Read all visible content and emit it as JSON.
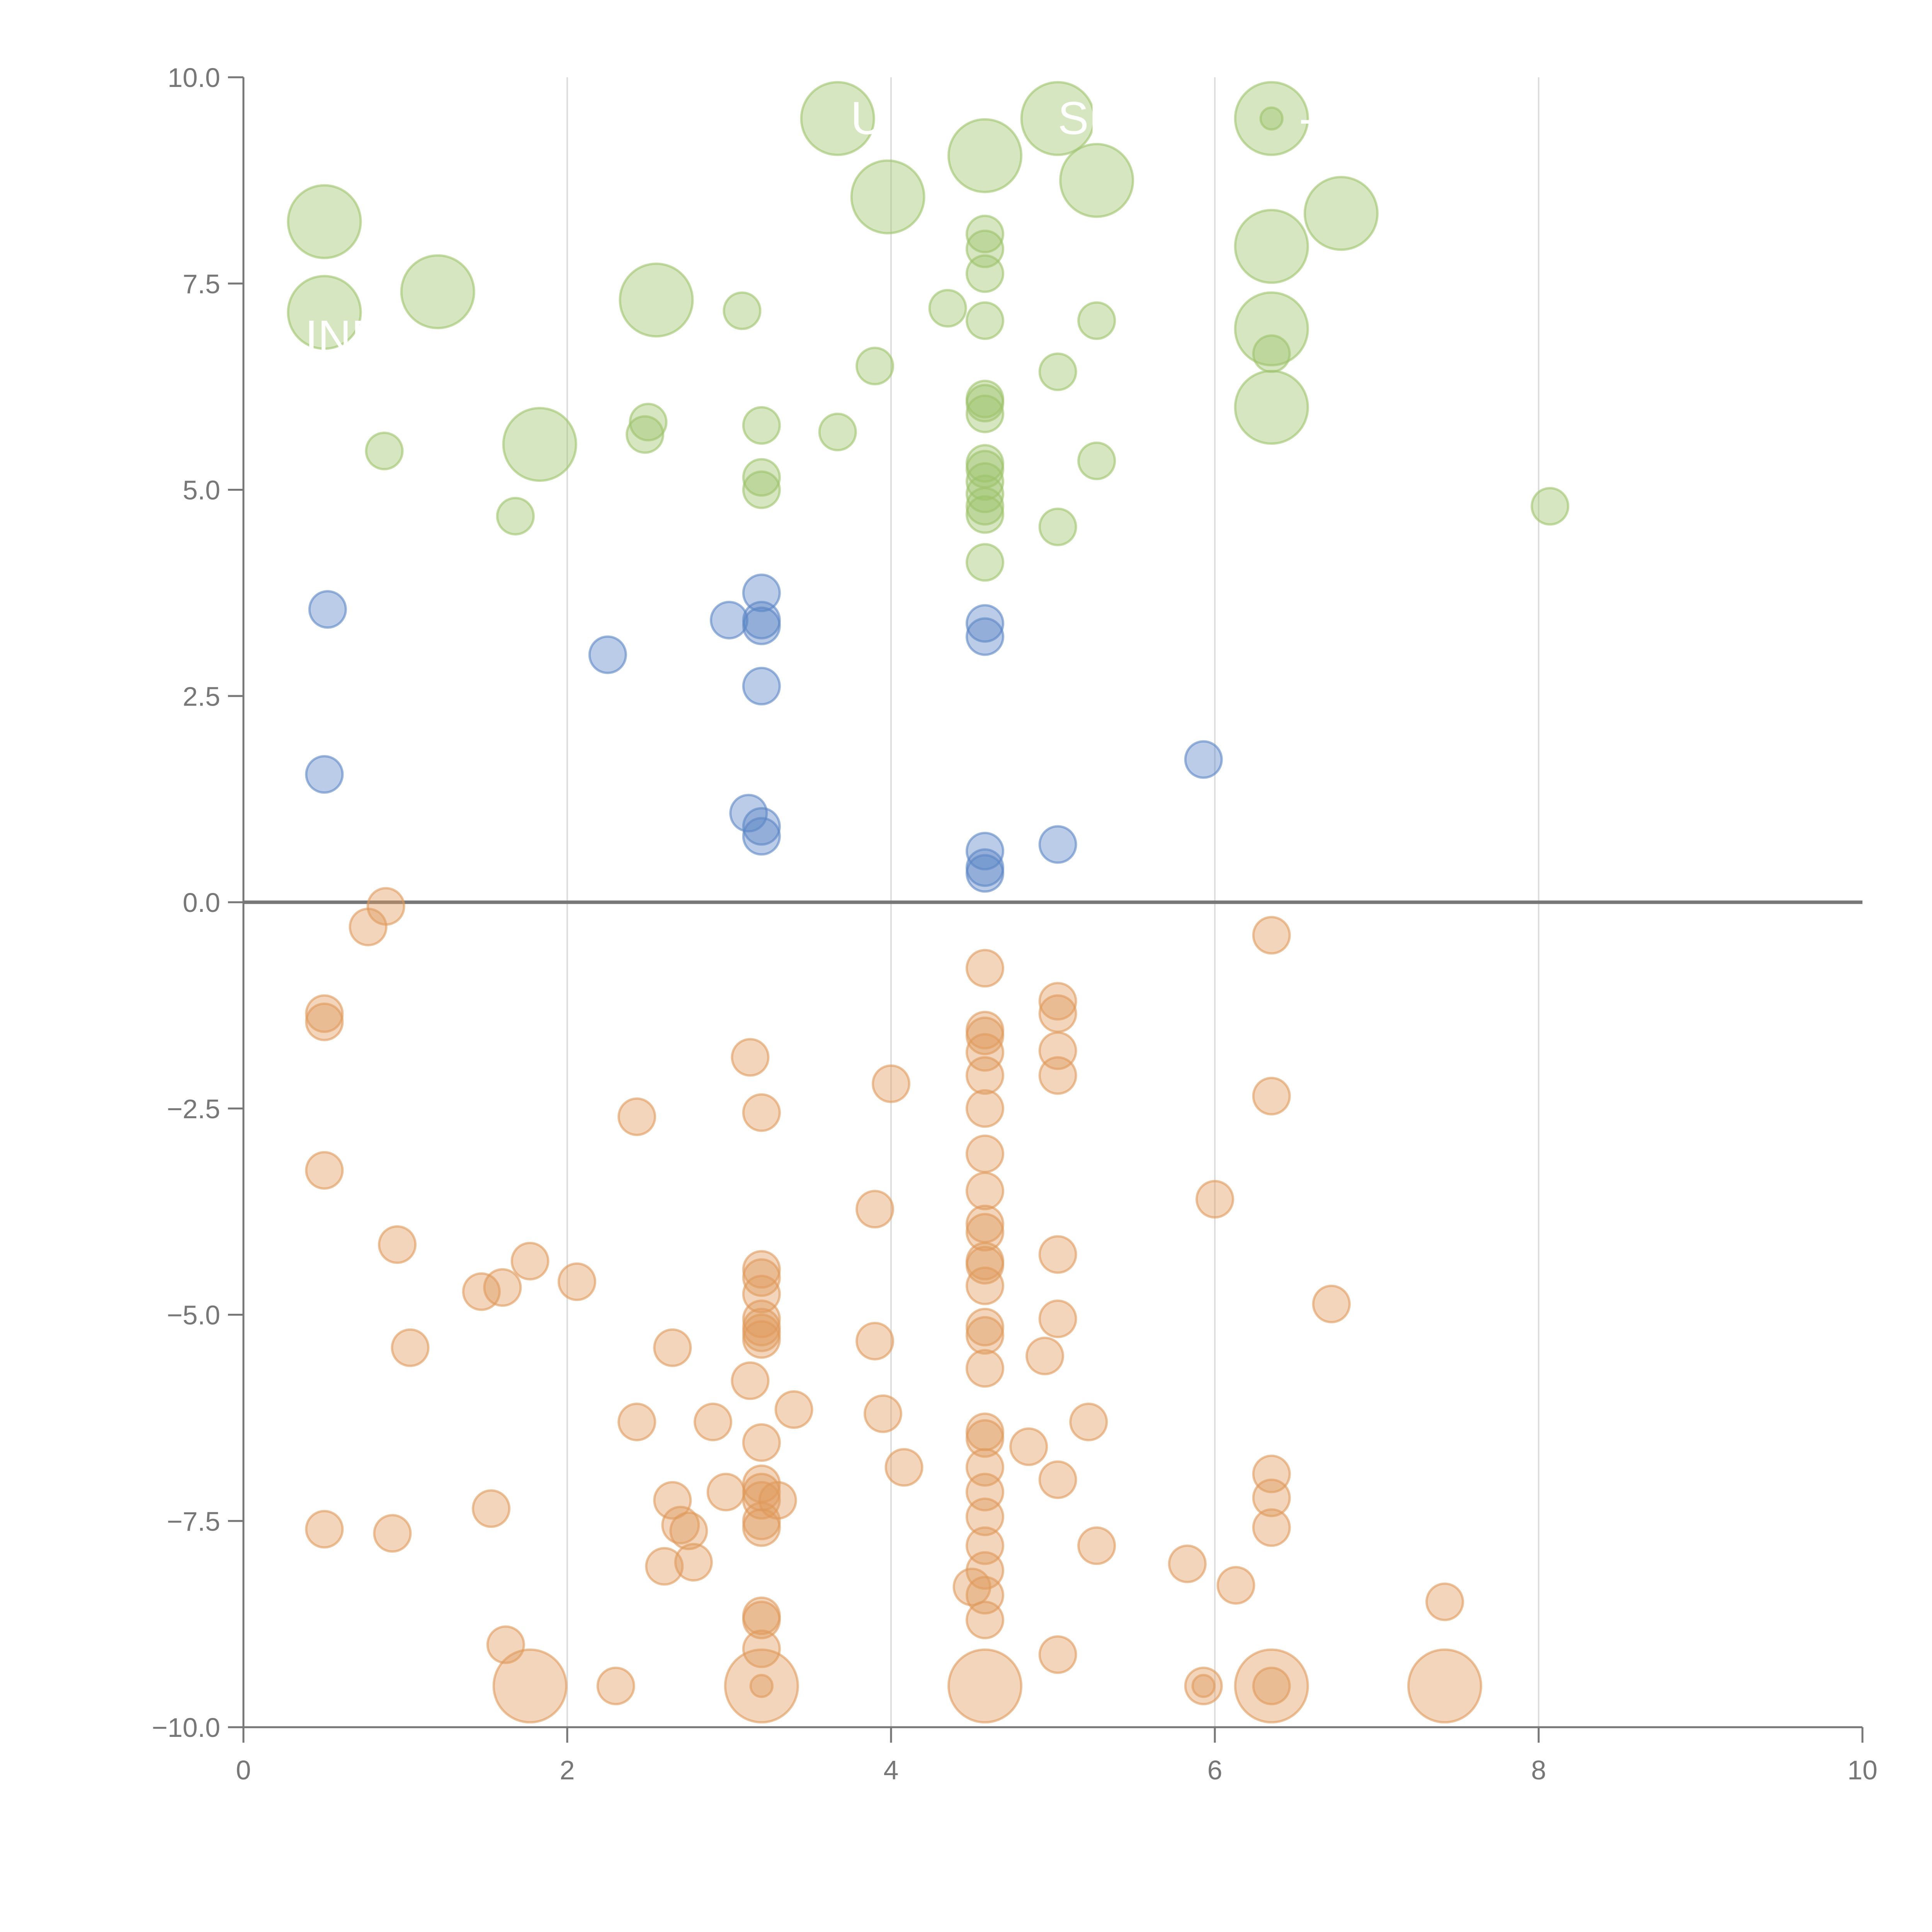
{
  "chart_data": {
    "type": "scatter",
    "title": "",
    "xlabel": "",
    "ylabel": "",
    "xlim": [
      0,
      10
    ],
    "ylim": [
      -10,
      10
    ],
    "x_ticks": [
      "0",
      "2",
      "4",
      "6",
      "8",
      "10"
    ],
    "y_ticks": [
      "10.0",
      "7.5",
      "5.0",
      "2.5",
      "0.0",
      "−2.5",
      "−5.0",
      "−7.5",
      "−10.0"
    ],
    "x_tick_values": [
      0,
      2,
      4,
      6,
      8,
      10
    ],
    "y_tick_values": [
      10,
      7.5,
      5,
      2.5,
      0,
      -2.5,
      -5,
      -7.5,
      -10
    ],
    "vertical_grid_at": [
      2,
      4,
      6,
      8
    ],
    "zero_line": 0,
    "size_note_small_r": 1,
    "colors": {
      "high": "#9dc36b",
      "mid": "#5b86c5",
      "low": "#e09a5c",
      "axis": "#777777",
      "grid": "#dddddd",
      "zero_line": "#777777"
    },
    "series": [
      {
        "color_key": "high",
        "points": [
          {
            "x": 0.5,
            "y": 8.25,
            "s": 2
          },
          {
            "x": 0.5,
            "y": 7.15,
            "s": 2
          },
          {
            "x": 1.2,
            "y": 7.4,
            "s": 2
          },
          {
            "x": 2.55,
            "y": 7.3,
            "s": 2
          },
          {
            "x": 1.83,
            "y": 5.55,
            "s": 2
          },
          {
            "x": 3.67,
            "y": 9.5,
            "s": 2
          },
          {
            "x": 3.98,
            "y": 8.55,
            "s": 2
          },
          {
            "x": 4.58,
            "y": 9.05,
            "s": 2
          },
          {
            "x": 5.03,
            "y": 9.5,
            "s": 2
          },
          {
            "x": 5.27,
            "y": 8.75,
            "s": 2
          },
          {
            "x": 6.35,
            "y": 9.5,
            "s": 2
          },
          {
            "x": 6.35,
            "y": 7.95,
            "s": 2
          },
          {
            "x": 6.35,
            "y": 6.95,
            "s": 2
          },
          {
            "x": 6.35,
            "y": 6.0,
            "s": 2
          },
          {
            "x": 6.78,
            "y": 8.35,
            "s": 2
          },
          {
            "x": 0.87,
            "y": 5.47,
            "s": 1
          },
          {
            "x": 1.68,
            "y": 4.68,
            "s": 1
          },
          {
            "x": 2.48,
            "y": 5.67,
            "s": 1
          },
          {
            "x": 2.5,
            "y": 5.82,
            "s": 1
          },
          {
            "x": 3.08,
            "y": 7.17,
            "s": 1
          },
          {
            "x": 3.2,
            "y": 5.78,
            "s": 1
          },
          {
            "x": 3.2,
            "y": 5.15,
            "s": 1
          },
          {
            "x": 3.2,
            "y": 5.0,
            "s": 1
          },
          {
            "x": 3.67,
            "y": 5.7,
            "s": 1
          },
          {
            "x": 3.9,
            "y": 6.5,
            "s": 1
          },
          {
            "x": 4.35,
            "y": 7.2,
            "s": 1
          },
          {
            "x": 4.58,
            "y": 8.1,
            "s": 1
          },
          {
            "x": 4.58,
            "y": 7.92,
            "s": 1
          },
          {
            "x": 4.58,
            "y": 7.62,
            "s": 1
          },
          {
            "x": 4.58,
            "y": 7.05,
            "s": 1
          },
          {
            "x": 4.58,
            "y": 6.1,
            "s": 1
          },
          {
            "x": 4.58,
            "y": 6.05,
            "s": 1
          },
          {
            "x": 4.58,
            "y": 5.92,
            "s": 1
          },
          {
            "x": 4.58,
            "y": 5.32,
            "s": 1
          },
          {
            "x": 4.58,
            "y": 5.25,
            "s": 1
          },
          {
            "x": 4.58,
            "y": 5.1,
            "s": 1
          },
          {
            "x": 4.58,
            "y": 4.95,
            "s": 1
          },
          {
            "x": 4.58,
            "y": 4.8,
            "s": 1
          },
          {
            "x": 4.58,
            "y": 4.7,
            "s": 1
          },
          {
            "x": 4.58,
            "y": 4.12,
            "s": 1
          },
          {
            "x": 5.03,
            "y": 6.43,
            "s": 1
          },
          {
            "x": 5.03,
            "y": 4.55,
            "s": 1
          },
          {
            "x": 5.27,
            "y": 7.05,
            "s": 1
          },
          {
            "x": 5.27,
            "y": 5.35,
            "s": 1
          },
          {
            "x": 6.35,
            "y": 9.5,
            "s": 0.6
          },
          {
            "x": 6.35,
            "y": 6.65,
            "s": 1
          },
          {
            "x": 8.07,
            "y": 4.8,
            "s": 1
          }
        ]
      },
      {
        "color_key": "mid",
        "points": [
          {
            "x": 0.52,
            "y": 3.55,
            "s": 1
          },
          {
            "x": 0.5,
            "y": 1.55,
            "s": 1
          },
          {
            "x": 2.25,
            "y": 3.0,
            "s": 1
          },
          {
            "x": 3.0,
            "y": 3.42,
            "s": 1
          },
          {
            "x": 3.2,
            "y": 3.75,
            "s": 1
          },
          {
            "x": 3.2,
            "y": 3.42,
            "s": 1
          },
          {
            "x": 3.2,
            "y": 3.35,
            "s": 1
          },
          {
            "x": 3.2,
            "y": 2.62,
            "s": 1
          },
          {
            "x": 3.12,
            "y": 1.08,
            "s": 1
          },
          {
            "x": 3.2,
            "y": 0.92,
            "s": 1
          },
          {
            "x": 3.2,
            "y": 0.8,
            "s": 1
          },
          {
            "x": 4.58,
            "y": 3.38,
            "s": 1
          },
          {
            "x": 4.58,
            "y": 3.22,
            "s": 1
          },
          {
            "x": 4.58,
            "y": 0.62,
            "s": 1
          },
          {
            "x": 4.58,
            "y": 0.42,
            "s": 1
          },
          {
            "x": 4.58,
            "y": 0.35,
            "s": 1
          },
          {
            "x": 5.03,
            "y": 0.7,
            "s": 1
          },
          {
            "x": 5.93,
            "y": 1.73,
            "s": 1
          }
        ]
      },
      {
        "color_key": "low",
        "points": [
          {
            "x": 0.88,
            "y": -0.05,
            "s": 1
          },
          {
            "x": 0.77,
            "y": -0.3,
            "s": 1
          },
          {
            "x": 0.5,
            "y": -1.35,
            "s": 1
          },
          {
            "x": 0.5,
            "y": -1.45,
            "s": 1
          },
          {
            "x": 0.5,
            "y": -3.25,
            "s": 1
          },
          {
            "x": 0.95,
            "y": -4.15,
            "s": 1
          },
          {
            "x": 1.47,
            "y": -4.72,
            "s": 1
          },
          {
            "x": 1.6,
            "y": -4.67,
            "s": 1
          },
          {
            "x": 1.77,
            "y": -4.35,
            "s": 1
          },
          {
            "x": 2.06,
            "y": -4.6,
            "s": 1
          },
          {
            "x": 1.03,
            "y": -5.4,
            "s": 1
          },
          {
            "x": 0.5,
            "y": -7.6,
            "s": 1
          },
          {
            "x": 0.92,
            "y": -7.65,
            "s": 1
          },
          {
            "x": 1.53,
            "y": -7.35,
            "s": 1
          },
          {
            "x": 1.62,
            "y": -9.0,
            "s": 1
          },
          {
            "x": 1.77,
            "y": -9.5,
            "s": 2
          },
          {
            "x": 2.3,
            "y": -9.5,
            "s": 1
          },
          {
            "x": 2.43,
            "y": -2.6,
            "s": 1
          },
          {
            "x": 2.43,
            "y": -6.3,
            "s": 1
          },
          {
            "x": 2.65,
            "y": -5.4,
            "s": 1
          },
          {
            "x": 2.65,
            "y": -7.25,
            "s": 1
          },
          {
            "x": 2.7,
            "y": -7.55,
            "s": 1
          },
          {
            "x": 2.75,
            "y": -7.62,
            "s": 1
          },
          {
            "x": 2.6,
            "y": -8.05,
            "s": 1
          },
          {
            "x": 2.78,
            "y": -8.0,
            "s": 1
          },
          {
            "x": 2.9,
            "y": -6.3,
            "s": 1
          },
          {
            "x": 2.98,
            "y": -7.15,
            "s": 1
          },
          {
            "x": 3.13,
            "y": -1.88,
            "s": 1
          },
          {
            "x": 3.2,
            "y": -2.55,
            "s": 1
          },
          {
            "x": 3.13,
            "y": -5.8,
            "s": 1
          },
          {
            "x": 3.2,
            "y": -4.45,
            "s": 1
          },
          {
            "x": 3.2,
            "y": -4.55,
            "s": 1
          },
          {
            "x": 3.2,
            "y": -4.75,
            "s": 1
          },
          {
            "x": 3.2,
            "y": -5.05,
            "s": 1
          },
          {
            "x": 3.2,
            "y": -5.15,
            "s": 1
          },
          {
            "x": 3.2,
            "y": -5.22,
            "s": 1
          },
          {
            "x": 3.2,
            "y": -5.3,
            "s": 1
          },
          {
            "x": 3.2,
            "y": -6.55,
            "s": 1
          },
          {
            "x": 3.2,
            "y": -7.05,
            "s": 1
          },
          {
            "x": 3.2,
            "y": -7.15,
            "s": 1
          },
          {
            "x": 3.2,
            "y": -7.25,
            "s": 1
          },
          {
            "x": 3.2,
            "y": -7.5,
            "s": 1
          },
          {
            "x": 3.2,
            "y": -7.58,
            "s": 1
          },
          {
            "x": 3.2,
            "y": -8.65,
            "s": 1
          },
          {
            "x": 3.2,
            "y": -8.7,
            "s": 1
          },
          {
            "x": 3.2,
            "y": -9.05,
            "s": 1
          },
          {
            "x": 3.2,
            "y": -9.5,
            "s": 2
          },
          {
            "x": 3.2,
            "y": -9.5,
            "s": 0.6
          },
          {
            "x": 3.3,
            "y": -7.25,
            "s": 1
          },
          {
            "x": 3.4,
            "y": -6.15,
            "s": 1
          },
          {
            "x": 3.9,
            "y": -3.72,
            "s": 1
          },
          {
            "x": 3.9,
            "y": -5.32,
            "s": 1
          },
          {
            "x": 3.95,
            "y": -6.2,
            "s": 1
          },
          {
            "x": 4.0,
            "y": -2.2,
            "s": 1
          },
          {
            "x": 4.08,
            "y": -6.85,
            "s": 1
          },
          {
            "x": 4.58,
            "y": -0.8,
            "s": 1
          },
          {
            "x": 4.58,
            "y": -1.55,
            "s": 1
          },
          {
            "x": 4.58,
            "y": -1.62,
            "s": 1
          },
          {
            "x": 4.58,
            "y": -1.82,
            "s": 1
          },
          {
            "x": 4.58,
            "y": -2.1,
            "s": 1
          },
          {
            "x": 4.58,
            "y": -2.5,
            "s": 1
          },
          {
            "x": 4.58,
            "y": -3.05,
            "s": 1
          },
          {
            "x": 4.58,
            "y": -3.5,
            "s": 1
          },
          {
            "x": 4.58,
            "y": -3.9,
            "s": 1
          },
          {
            "x": 4.58,
            "y": -4.0,
            "s": 1
          },
          {
            "x": 4.58,
            "y": -4.35,
            "s": 1
          },
          {
            "x": 4.58,
            "y": -4.4,
            "s": 1
          },
          {
            "x": 4.58,
            "y": -4.65,
            "s": 1
          },
          {
            "x": 4.58,
            "y": -5.15,
            "s": 1
          },
          {
            "x": 4.58,
            "y": -5.25,
            "s": 1
          },
          {
            "x": 4.58,
            "y": -5.65,
            "s": 1
          },
          {
            "x": 4.58,
            "y": -6.42,
            "s": 1
          },
          {
            "x": 4.58,
            "y": -6.5,
            "s": 1
          },
          {
            "x": 4.58,
            "y": -6.85,
            "s": 1
          },
          {
            "x": 4.58,
            "y": -7.15,
            "s": 1
          },
          {
            "x": 4.58,
            "y": -7.45,
            "s": 1
          },
          {
            "x": 4.58,
            "y": -7.8,
            "s": 1
          },
          {
            "x": 4.58,
            "y": -8.1,
            "s": 1
          },
          {
            "x": 4.5,
            "y": -8.3,
            "s": 1
          },
          {
            "x": 4.58,
            "y": -8.4,
            "s": 1
          },
          {
            "x": 4.58,
            "y": -8.7,
            "s": 1
          },
          {
            "x": 4.58,
            "y": -9.5,
            "s": 2
          },
          {
            "x": 4.85,
            "y": -6.6,
            "s": 1
          },
          {
            "x": 4.95,
            "y": -5.5,
            "s": 1
          },
          {
            "x": 5.03,
            "y": -1.2,
            "s": 1
          },
          {
            "x": 5.03,
            "y": -1.35,
            "s": 1
          },
          {
            "x": 5.03,
            "y": -1.8,
            "s": 1
          },
          {
            "x": 5.03,
            "y": -2.1,
            "s": 1
          },
          {
            "x": 5.03,
            "y": -4.27,
            "s": 1
          },
          {
            "x": 5.03,
            "y": -5.05,
            "s": 1
          },
          {
            "x": 5.03,
            "y": -7.0,
            "s": 1
          },
          {
            "x": 5.03,
            "y": -9.12,
            "s": 1
          },
          {
            "x": 5.22,
            "y": -6.3,
            "s": 1
          },
          {
            "x": 5.27,
            "y": -7.8,
            "s": 1
          },
          {
            "x": 5.83,
            "y": -8.02,
            "s": 1
          },
          {
            "x": 5.93,
            "y": -9.5,
            "s": 1
          },
          {
            "x": 5.93,
            "y": -9.5,
            "s": 0.6
          },
          {
            "x": 6.0,
            "y": -3.6,
            "s": 1
          },
          {
            "x": 6.13,
            "y": -8.28,
            "s": 1
          },
          {
            "x": 6.35,
            "y": -0.4,
            "s": 1
          },
          {
            "x": 6.35,
            "y": -2.35,
            "s": 1
          },
          {
            "x": 6.35,
            "y": -6.93,
            "s": 1
          },
          {
            "x": 6.35,
            "y": -7.22,
            "s": 1
          },
          {
            "x": 6.35,
            "y": -7.58,
            "s": 1
          },
          {
            "x": 6.35,
            "y": -9.5,
            "s": 2
          },
          {
            "x": 6.35,
            "y": -9.5,
            "s": 1
          },
          {
            "x": 6.72,
            "y": -4.87,
            "s": 1
          },
          {
            "x": 7.42,
            "y": -8.48,
            "s": 1
          },
          {
            "x": 7.42,
            "y": -9.5,
            "s": 2
          }
        ]
      }
    ],
    "labels": [
      {
        "text": "U",
        "x": 3.75,
        "y": 9.5
      },
      {
        "text": "SP",
        "x": 5.03,
        "y": 9.5
      },
      {
        "text": "-L",
        "x": 6.52,
        "y": 9.5
      },
      {
        "text": "INE",
        "x": 0.38,
        "y": 6.85
      }
    ]
  }
}
